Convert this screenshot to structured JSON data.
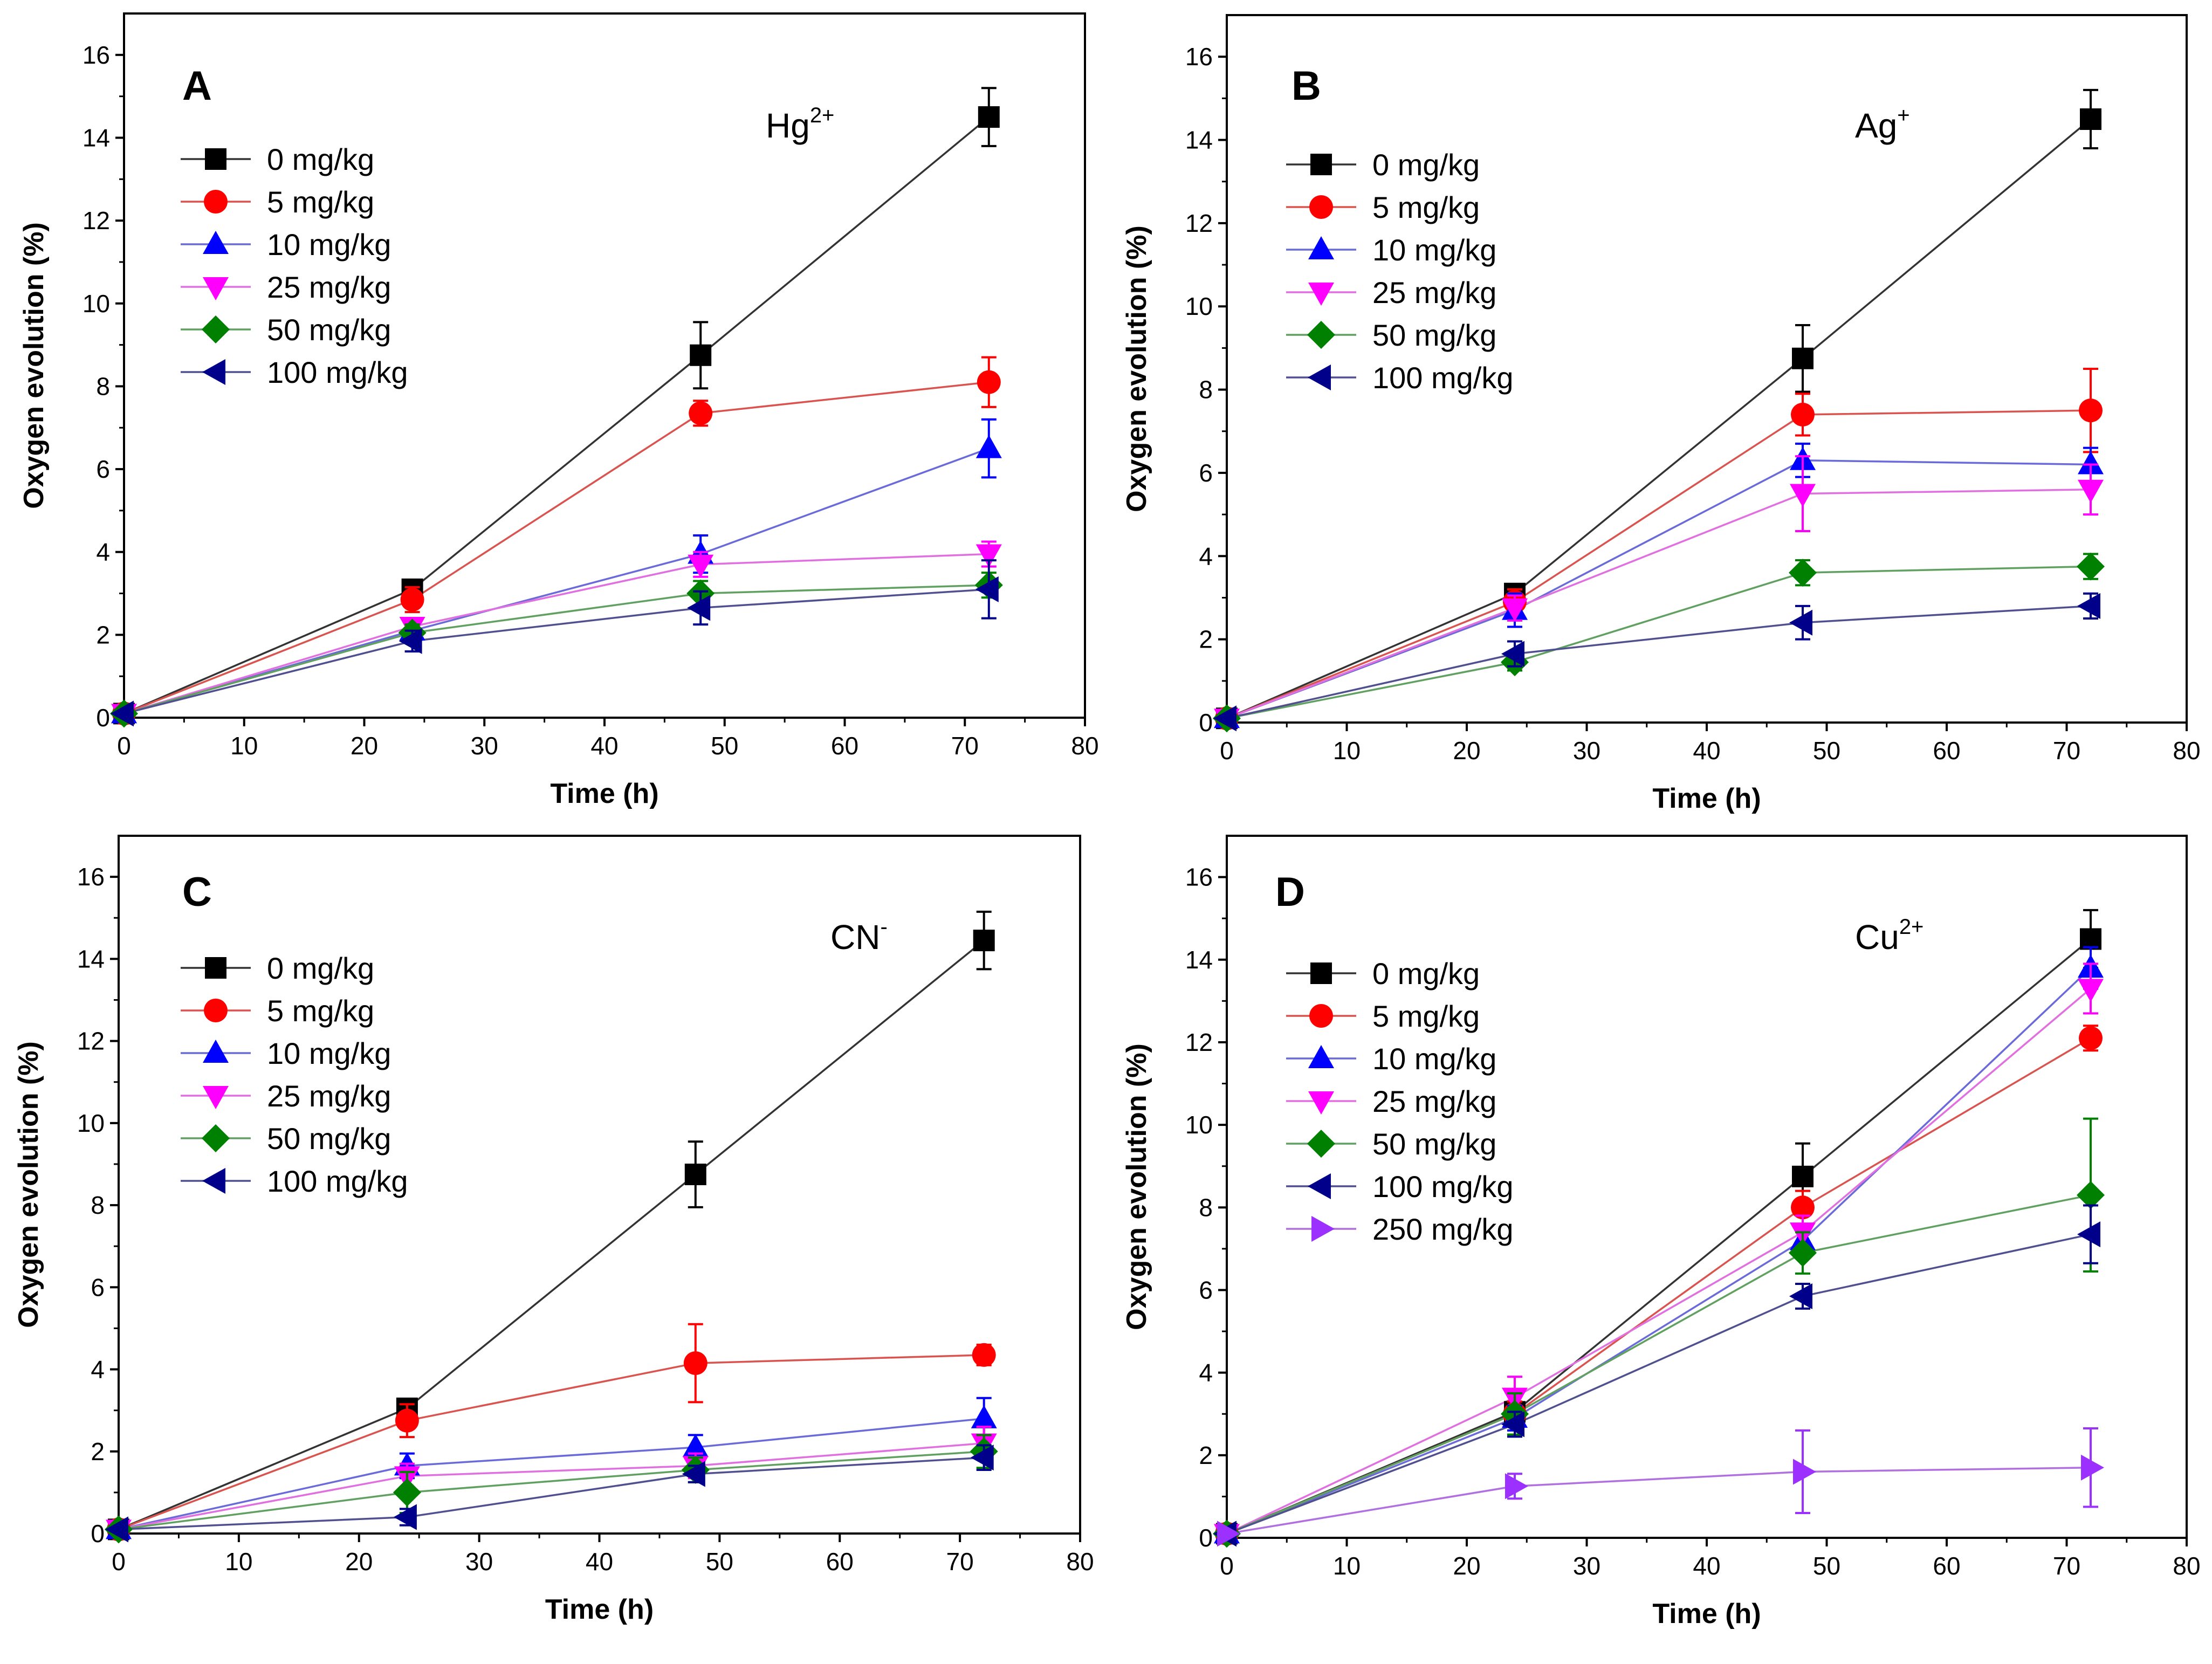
{
  "chart_data": [
    {
      "type": "line",
      "panel": "A",
      "ion": {
        "base": "Hg",
        "sup": "2+"
      },
      "xlabel": "Time (h)",
      "ylabel": "Oxygen evolution (%)",
      "xlim": [
        0,
        80
      ],
      "ylim": [
        0,
        17
      ],
      "xticks": [
        "0",
        "10",
        "20",
        "30",
        "40",
        "50",
        "60",
        "70",
        "80"
      ],
      "yticks": [
        "0",
        "2",
        "4",
        "6",
        "8",
        "10",
        "12",
        "14",
        "16"
      ],
      "x": [
        0,
        24,
        48,
        72
      ],
      "series": [
        {
          "name": "0 mg/kg",
          "marker": "square",
          "color": "#000000",
          "line_color": "#333333",
          "values": [
            0.1,
            3.1,
            8.75,
            14.5
          ],
          "errors": [
            0.1,
            0.2,
            0.8,
            0.7
          ]
        },
        {
          "name": "5 mg/kg",
          "marker": "circle",
          "color": "#ff0000",
          "line_color": "#d9534f",
          "values": [
            0.1,
            2.85,
            7.35,
            8.1
          ],
          "errors": [
            0.1,
            0.3,
            0.3,
            0.6
          ]
        },
        {
          "name": "10 mg/kg",
          "marker": "triangle-up",
          "color": "#0000ff",
          "line_color": "#6a6ad8",
          "values": [
            0.1,
            2.1,
            3.95,
            6.5
          ],
          "errors": [
            0.1,
            0.3,
            0.45,
            0.7
          ]
        },
        {
          "name": "25 mg/kg",
          "marker": "triangle-down",
          "color": "#ff00ff",
          "line_color": "#e070e0",
          "values": [
            0.1,
            2.2,
            3.7,
            3.95
          ],
          "errors": [
            0.1,
            0.2,
            0.3,
            0.3
          ]
        },
        {
          "name": "50 mg/kg",
          "marker": "diamond",
          "color": "#008000",
          "line_color": "#60a060",
          "values": [
            0.1,
            2.05,
            3.0,
            3.2
          ],
          "errors": [
            0.1,
            0.2,
            0.3,
            0.3
          ]
        },
        {
          "name": "100 mg/kg",
          "marker": "triangle-left",
          "color": "#00008b",
          "line_color": "#505090",
          "values": [
            0.1,
            1.85,
            2.65,
            3.1
          ],
          "errors": [
            0.1,
            0.25,
            0.4,
            0.7
          ]
        }
      ]
    },
    {
      "type": "line",
      "panel": "B",
      "ion": {
        "base": "Ag",
        "sup": "+"
      },
      "xlabel": "Time (h)",
      "ylabel": "Oxygen evolution (%)",
      "xlim": [
        0,
        80
      ],
      "ylim": [
        0,
        17
      ],
      "xticks": [
        "0",
        "10",
        "20",
        "30",
        "40",
        "50",
        "60",
        "70",
        "80"
      ],
      "yticks": [
        "0",
        "2",
        "4",
        "6",
        "8",
        "10",
        "12",
        "14",
        "16"
      ],
      "x": [
        0,
        24,
        48,
        72
      ],
      "series": [
        {
          "name": "0 mg/kg",
          "marker": "square",
          "color": "#000000",
          "line_color": "#333333",
          "values": [
            0.1,
            3.1,
            8.75,
            14.5
          ],
          "errors": [
            0.1,
            0.2,
            0.8,
            0.7
          ]
        },
        {
          "name": "5 mg/kg",
          "marker": "circle",
          "color": "#ff0000",
          "line_color": "#d9534f",
          "values": [
            0.1,
            2.9,
            7.4,
            7.5
          ],
          "errors": [
            0.1,
            0.3,
            0.5,
            1.0
          ]
        },
        {
          "name": "10 mg/kg",
          "marker": "triangle-up",
          "color": "#0000ff",
          "line_color": "#6a6ad8",
          "values": [
            0.1,
            2.7,
            6.3,
            6.2
          ],
          "errors": [
            0.1,
            0.4,
            0.4,
            0.4
          ]
        },
        {
          "name": "25 mg/kg",
          "marker": "triangle-down",
          "color": "#ff00ff",
          "line_color": "#e070e0",
          "values": [
            0.1,
            2.75,
            5.5,
            5.6
          ],
          "errors": [
            0.1,
            0.3,
            0.9,
            0.6
          ]
        },
        {
          "name": "50 mg/kg",
          "marker": "diamond",
          "color": "#008000",
          "line_color": "#60a060",
          "values": [
            0.1,
            1.45,
            3.6,
            3.75
          ],
          "errors": [
            0.1,
            0.2,
            0.3,
            0.3
          ]
        },
        {
          "name": "100 mg/kg",
          "marker": "triangle-left",
          "color": "#00008b",
          "line_color": "#505090",
          "values": [
            0.1,
            1.65,
            2.4,
            2.8
          ],
          "errors": [
            0.1,
            0.3,
            0.4,
            0.3
          ]
        }
      ]
    },
    {
      "type": "line",
      "panel": "C",
      "ion": {
        "base": "CN",
        "sup": "-"
      },
      "xlabel": "Time (h)",
      "ylabel": "Oxygen evolution (%)",
      "xlim": [
        0,
        80
      ],
      "ylim": [
        0,
        17
      ],
      "xticks": [
        "0",
        "10",
        "20",
        "30",
        "40",
        "50",
        "60",
        "70",
        "80"
      ],
      "yticks": [
        "0",
        "2",
        "4",
        "6",
        "8",
        "10",
        "12",
        "14",
        "16"
      ],
      "x": [
        0,
        24,
        48,
        72
      ],
      "series": [
        {
          "name": "0 mg/kg",
          "marker": "square",
          "color": "#000000",
          "line_color": "#333333",
          "values": [
            0.1,
            3.05,
            8.75,
            14.45
          ],
          "errors": [
            0.1,
            0.2,
            0.8,
            0.7
          ]
        },
        {
          "name": "5 mg/kg",
          "marker": "circle",
          "color": "#ff0000",
          "line_color": "#d9534f",
          "values": [
            0.1,
            2.75,
            4.15,
            4.35
          ],
          "errors": [
            0.1,
            0.4,
            0.95,
            0.25
          ]
        },
        {
          "name": "10 mg/kg",
          "marker": "triangle-up",
          "color": "#0000ff",
          "line_color": "#6a6ad8",
          "values": [
            0.1,
            1.65,
            2.1,
            2.8
          ],
          "errors": [
            0.1,
            0.3,
            0.3,
            0.5
          ]
        },
        {
          "name": "25 mg/kg",
          "marker": "triangle-down",
          "color": "#ff00ff",
          "line_color": "#e070e0",
          "values": [
            0.1,
            1.4,
            1.65,
            2.2
          ],
          "errors": [
            0.1,
            0.3,
            0.3,
            0.4
          ]
        },
        {
          "name": "50 mg/kg",
          "marker": "diamond",
          "color": "#008000",
          "line_color": "#60a060",
          "values": [
            0.1,
            1.0,
            1.55,
            2.0
          ],
          "errors": [
            0.1,
            0.5,
            0.3,
            0.4
          ]
        },
        {
          "name": "100 mg/kg",
          "marker": "triangle-left",
          "color": "#00008b",
          "line_color": "#505090",
          "values": [
            0.1,
            0.4,
            1.45,
            1.85
          ],
          "errors": [
            0.1,
            0.2,
            0.2,
            0.3
          ]
        }
      ]
    },
    {
      "type": "line",
      "panel": "D",
      "ion": {
        "base": "Cu",
        "sup": "2+"
      },
      "xlabel": "Time (h)",
      "ylabel": "Oxygen evolution (%)",
      "xlim": [
        0,
        80
      ],
      "ylim": [
        0,
        17
      ],
      "xticks": [
        "0",
        "10",
        "20",
        "30",
        "40",
        "50",
        "60",
        "70",
        "80"
      ],
      "yticks": [
        "0",
        "2",
        "4",
        "6",
        "8",
        "10",
        "12",
        "14",
        "16"
      ],
      "x": [
        0,
        24,
        48,
        72
      ],
      "series": [
        {
          "name": "0 mg/kg",
          "marker": "square",
          "color": "#000000",
          "line_color": "#333333",
          "values": [
            0.1,
            3.05,
            8.75,
            14.5
          ],
          "errors": [
            0.1,
            0.2,
            0.8,
            0.7
          ]
        },
        {
          "name": "5 mg/kg",
          "marker": "circle",
          "color": "#ff0000",
          "line_color": "#d9534f",
          "values": [
            0.1,
            3.0,
            8.0,
            12.1
          ],
          "errors": [
            0.1,
            0.3,
            0.4,
            0.3
          ]
        },
        {
          "name": "10 mg/kg",
          "marker": "triangle-up",
          "color": "#0000ff",
          "line_color": "#6a6ad8",
          "values": [
            0.1,
            2.9,
            7.2,
            13.8
          ],
          "errors": [
            0.1,
            0.3,
            0.4,
            0.5
          ]
        },
        {
          "name": "25 mg/kg",
          "marker": "triangle-down",
          "color": "#ff00ff",
          "line_color": "#e070e0",
          "values": [
            0.1,
            3.4,
            7.4,
            13.3
          ],
          "errors": [
            0.1,
            0.5,
            0.4,
            0.6
          ]
        },
        {
          "name": "50 mg/kg",
          "marker": "diamond",
          "color": "#008000",
          "line_color": "#60a060",
          "values": [
            0.1,
            3.0,
            6.9,
            8.3
          ],
          "errors": [
            0.1,
            0.5,
            0.5,
            1.85
          ]
        },
        {
          "name": "100 mg/kg",
          "marker": "triangle-left",
          "color": "#00008b",
          "line_color": "#505090",
          "values": [
            0.1,
            2.75,
            5.85,
            7.35
          ],
          "errors": [
            0.1,
            0.3,
            0.3,
            0.7
          ]
        },
        {
          "name": "250 mg/kg",
          "marker": "triangle-right",
          "color": "#9b30ff",
          "line_color": "#b070e0",
          "values": [
            0.1,
            1.25,
            1.6,
            1.7
          ],
          "errors": [
            0.1,
            0.3,
            1.0,
            0.95
          ]
        }
      ]
    }
  ]
}
